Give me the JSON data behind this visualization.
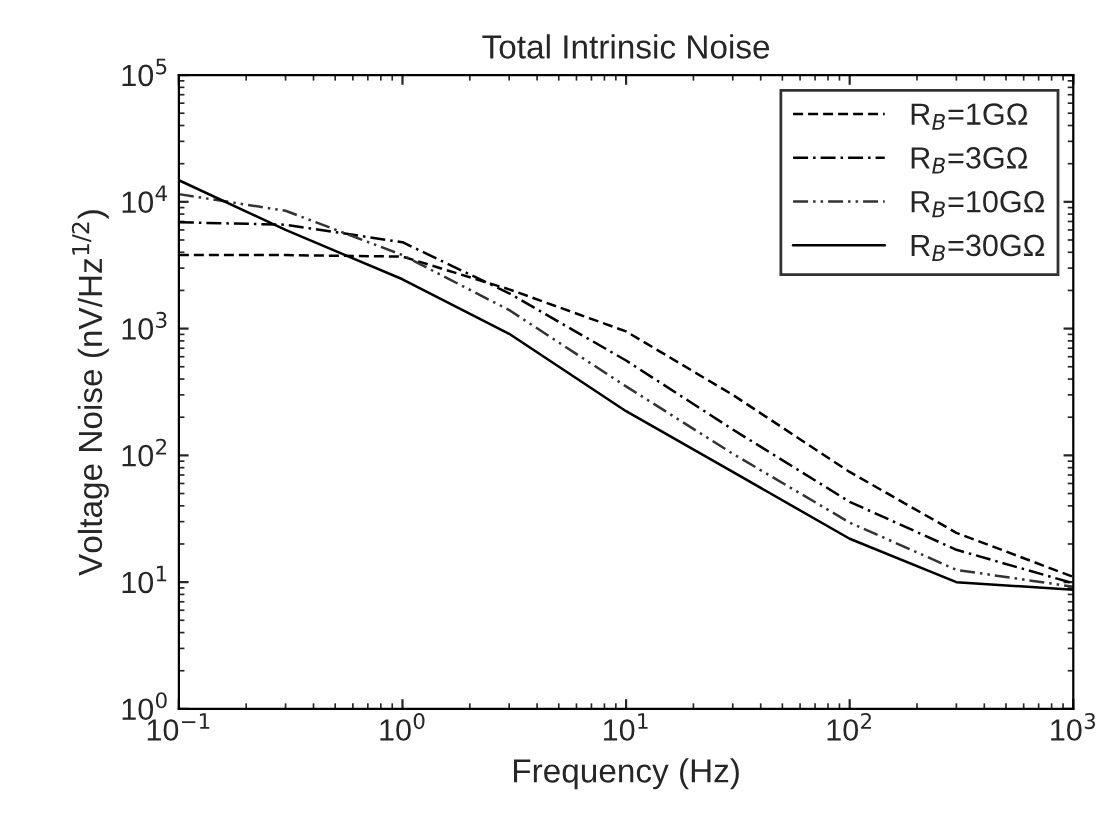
{
  "chart_data": {
    "type": "line",
    "title": "Total Intrinsic Noise",
    "xlabel": "Frequency (Hz)",
    "ylabel": "Voltage Noise (nV/Hz$^{1/2}$)",
    "x": [
      0.1,
      0.3,
      1,
      3,
      10,
      30,
      100,
      300,
      1000
    ],
    "series": [
      {
        "name": "R$_{B}$=1GΩ",
        "color": "#000000",
        "line_style": "dashed",
        "values": [
          3800,
          3800,
          3700,
          2040,
          950,
          300,
          74,
          24.5,
          11
        ]
      },
      {
        "name": "R$_{B}$=3GΩ",
        "color": "#000000",
        "line_style": "dashdot",
        "values": [
          6900,
          6600,
          4800,
          1900,
          560,
          160,
          43,
          18,
          9.8
        ]
      },
      {
        "name": "R$_{B}$=10GΩ",
        "color": "#333333",
        "line_style": "dashdotdot",
        "values": [
          11500,
          8500,
          3800,
          1400,
          350,
          103,
          29.5,
          12.5,
          9.2
        ]
      },
      {
        "name": "R$_{B}$=30GΩ",
        "color": "#000000",
        "line_style": "solid",
        "values": [
          14800,
          6000,
          2450,
          910,
          223,
          74,
          22,
          10,
          8.7
        ]
      }
    ],
    "log": "xy",
    "xlim": [
      0.1,
      1000
    ],
    "ylim": [
      1,
      100000
    ],
    "xticks": [
      {
        "value": 0.1,
        "label": "10$^{−1}$"
      },
      {
        "value": 1,
        "label": "10$^{0}$"
      },
      {
        "value": 10,
        "label": "10$^{1}$"
      },
      {
        "value": 100,
        "label": "10$^{2}$"
      },
      {
        "value": 1000,
        "label": "10$^{3}$"
      }
    ],
    "yticks": [
      {
        "value": 1,
        "label": "10$^{0}$"
      },
      {
        "value": 10,
        "label": "10$^{1}$"
      },
      {
        "value": 100,
        "label": "10$^{2}$"
      },
      {
        "value": 1000,
        "label": "10$^{3}$"
      },
      {
        "value": 10000,
        "label": "10$^{4}$"
      },
      {
        "value": 100000,
        "label": "10$^{5}$"
      }
    ],
    "grid": false,
    "legend": "top right"
  }
}
